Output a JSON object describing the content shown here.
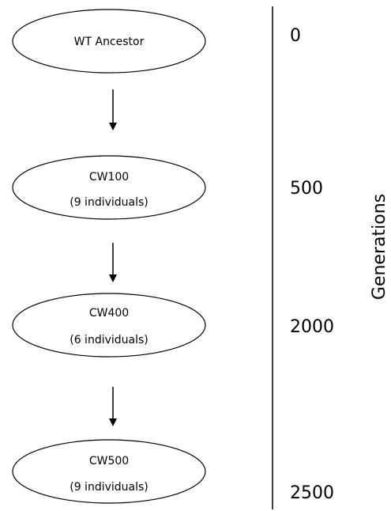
{
  "nodes": [
    {
      "title": "WT Ancestor",
      "subtitle": ""
    },
    {
      "title": "CW100",
      "subtitle": "(9 individuals)"
    },
    {
      "title": "CW400",
      "subtitle": "(6 individuals)"
    },
    {
      "title": "CW500",
      "subtitle": "(9 individuals)"
    }
  ],
  "generations": {
    "title": "Generations",
    "values": [
      "0",
      "500",
      "2000",
      "2500"
    ]
  }
}
